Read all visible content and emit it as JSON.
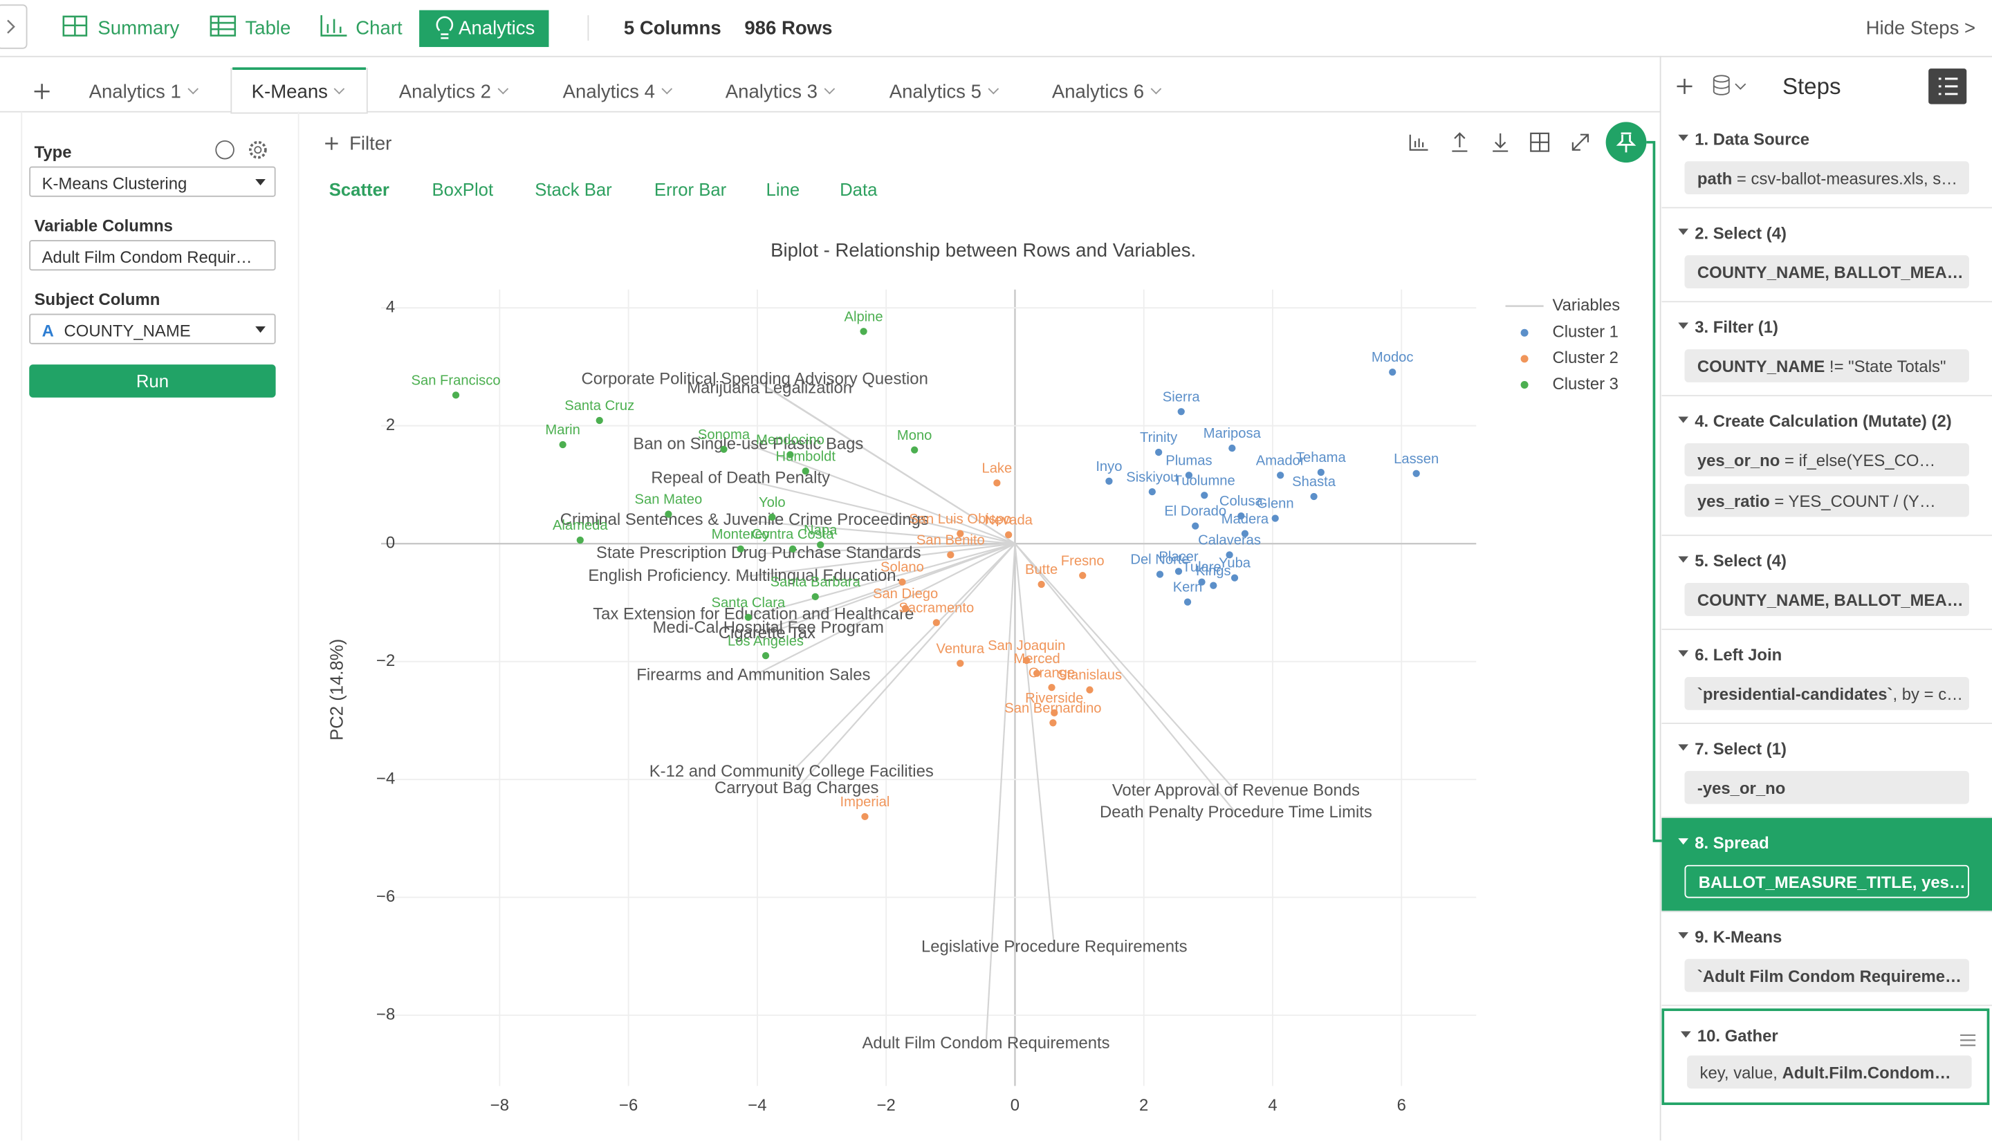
{
  "ui": {
    "top_tabs": [
      "Summary",
      "Table",
      "Chart",
      "Analytics"
    ],
    "columns": "5 Columns",
    "rows": "986 Rows",
    "hide_steps": "Hide Steps >",
    "analytics_tabs": [
      "Analytics 1",
      "K-Means",
      "Analytics 2",
      "Analytics 4",
      "Analytics 3",
      "Analytics 5",
      "Analytics 6"
    ],
    "panel": {
      "type_label": "Type",
      "type_value": "K-Means Clustering",
      "variable_label": "Variable Columns",
      "variable_value": "Adult Film Condom Requir…",
      "subject_label": "Subject Column",
      "subject_icon": "A",
      "subject_value": "COUNTY_NAME",
      "run": "Run"
    },
    "filter": "Filter",
    "chart_tabs": [
      "Scatter",
      "BoxPlot",
      "Stack Bar",
      "Error Bar",
      "Line",
      "Data"
    ],
    "steps_title": "Steps",
    "steps": [
      {
        "title": "1. Data Source",
        "chips": [
          {
            "bold": "path",
            "text": " = csv-ballot-measures.xls, s…"
          }
        ]
      },
      {
        "title": "2. Select (4)",
        "chips": [
          {
            "bold": "COUNTY_NAME, BALLOT_MEA…"
          }
        ]
      },
      {
        "title": "3. Filter (1)",
        "chips": [
          {
            "bold": "COUNTY_NAME",
            "text": " != \"State Totals\""
          }
        ]
      },
      {
        "title": "4. Create Calculation (Mutate) (2)",
        "chips": [
          {
            "bold": "yes_or_no",
            "text": " = if_else(YES_CO…"
          },
          {
            "bold": "yes_ratio",
            "text": " = YES_COUNT / (Y…"
          }
        ]
      },
      {
        "title": "5. Select (4)",
        "chips": [
          {
            "bold": "COUNTY_NAME, BALLOT_MEA…"
          }
        ]
      },
      {
        "title": "6. Left Join",
        "chips": [
          {
            "bold": "`presidential-candidates`",
            "text": ", by = c…"
          }
        ]
      },
      {
        "title": "7. Select (1)",
        "chips": [
          {
            "bold": "-yes_or_no"
          }
        ]
      },
      {
        "title": "8. Spread",
        "chips": [
          {
            "bold": "BALLOT_MEASURE_TITLE, yes…"
          }
        ]
      },
      {
        "title": "9. K-Means",
        "chips": [
          {
            "bold": "`Adult Film Condom Requireme…"
          }
        ]
      },
      {
        "title": "10. Gather",
        "chips": [
          {
            "text": "key, value, ",
            "bold": "Adult.Film.Condom…"
          }
        ]
      }
    ]
  },
  "chart_data": {
    "type": "scatter",
    "title": "Biplot - Relationship between Rows and Variables.",
    "ylabel": "PC2 (14.8%)",
    "xlim": [
      -9.84,
      7.16
    ],
    "ylim": [
      -9.2,
      4.31
    ],
    "xticks": [
      {
        "value": -8,
        "label": "−8"
      },
      {
        "value": -6,
        "label": "−6"
      },
      {
        "value": -4,
        "label": "−4"
      },
      {
        "value": -2,
        "label": "−2"
      },
      0,
      2,
      4,
      6
    ],
    "yticks": [
      {
        "value": -8,
        "label": "−8"
      },
      {
        "value": -6,
        "label": "−6"
      },
      {
        "value": -4,
        "label": "−4"
      },
      {
        "value": -2,
        "label": "−2"
      },
      0,
      2,
      4
    ],
    "grid": true,
    "vectors": {
      "name": "Variables",
      "color": "#d4d4d4",
      "labels": [
        "Corporate Political Spending Advisory Question",
        "Marijuana Legalization",
        "Ban on Single-use Plastic Bags",
        "Repeal of Death Penalty",
        "Criminal Sentences & Juvenile Crime Proceedings",
        "State Prescription Drug Purchase Standards",
        "English Proficiency. Multilingual Education.",
        "Tax Extension for Education and Healthcare",
        "Medi-Cal Hospital Fee Program",
        "Cigarette Tax",
        "Firearms and Ammunition Sales",
        "K-12 and Community College Facilities",
        "Carryout Bag Charges",
        "Voter Approval of Revenue Bonds",
        "Death Penalty Procedure Time Limits",
        "Legislative Procedure Requirements",
        "Adult Film Condom Requirements"
      ],
      "x": [
        -4.04,
        -3.81,
        -4.14,
        -4.26,
        -4.2,
        -3.98,
        -4.2,
        -4.06,
        -3.83,
        -3.85,
        -4.06,
        -3.47,
        -3.39,
        3.43,
        3.43,
        0.61,
        -0.45
      ],
      "y": [
        2.78,
        2.63,
        1.68,
        1.1,
        0.39,
        -0.17,
        -0.56,
        -1.21,
        -1.44,
        -1.53,
        -2.24,
        -3.88,
        -4.16,
        -4.2,
        -4.57,
        -6.85,
        -8.49
      ]
    },
    "series": [
      {
        "name": "Cluster 1",
        "color": "#5b8fc9",
        "labels": [
          "Modoc",
          "Sierra",
          "Mariposa",
          "Trinity",
          "Plumas",
          "Amador",
          "Tehama",
          "Lassen",
          "Inyo",
          "Siskiyou",
          "Tuolumne",
          "Shasta",
          "El Dorado",
          "Colusa",
          "Glenn",
          "Madera",
          "Calaveras",
          "Del Norte",
          "Placer",
          "Tulare",
          "Kings",
          "Yuba",
          "Kern"
        ],
        "x": [
          5.86,
          2.58,
          3.37,
          2.23,
          2.7,
          4.12,
          4.75,
          6.23,
          1.46,
          2.13,
          2.94,
          4.64,
          2.8,
          3.51,
          4.04,
          3.57,
          3.33,
          2.25,
          2.54,
          2.9,
          3.08,
          3.41,
          2.68
        ],
        "y": [
          2.91,
          2.24,
          1.62,
          1.55,
          1.16,
          1.16,
          1.21,
          1.19,
          1.06,
          0.88,
          0.82,
          0.8,
          0.3,
          0.47,
          0.43,
          0.17,
          -0.19,
          -0.52,
          -0.47,
          -0.65,
          -0.71,
          -0.58,
          -0.99
        ]
      },
      {
        "name": "Cluster 2",
        "color": "#f0955a",
        "labels": [
          "Lake",
          "Nevada",
          "San Luis Obispo",
          "San Benito",
          "Solano",
          "Butte",
          "Fresno",
          "San Diego",
          "Sacramento",
          "Ventura",
          "San Joaquin",
          "Merced",
          "Orange",
          "Stanislaus",
          "Riverside",
          "San Bernardino",
          "Imperial"
        ],
        "x": [
          -0.28,
          -0.1,
          -0.85,
          -1.0,
          -1.75,
          0.41,
          1.05,
          -1.7,
          -1.22,
          -0.85,
          0.18,
          0.34,
          0.57,
          1.16,
          0.61,
          0.59,
          -2.33
        ],
        "y": [
          1.03,
          0.15,
          0.17,
          -0.19,
          -0.65,
          -0.69,
          -0.54,
          -1.1,
          -1.34,
          -2.03,
          -1.98,
          -2.2,
          -2.44,
          -2.48,
          -2.87,
          -3.04,
          -4.63
        ]
      },
      {
        "name": "Cluster 3",
        "color": "#4caf50",
        "labels": [
          "Alpine",
          "San Francisco",
          "Santa Cruz",
          "Marin",
          "Mono",
          "Sonoma",
          "Mendocino",
          "Humboldt",
          "San Mateo",
          "Yolo",
          "Alameda",
          "Napa",
          "Monterey",
          "Contra Costa",
          "Santa Barbara",
          "Santa Clara",
          "Los Angeles"
        ],
        "x": [
          -2.35,
          -8.68,
          -6.45,
          -7.02,
          -1.56,
          -4.52,
          -3.49,
          -3.25,
          -5.38,
          -3.77,
          -6.75,
          -3.02,
          -4.26,
          -3.45,
          -3.1,
          -4.14,
          -3.87
        ],
        "y": [
          3.6,
          2.52,
          2.09,
          1.68,
          1.59,
          1.6,
          1.51,
          1.23,
          0.5,
          0.45,
          0.06,
          -0.02,
          -0.09,
          -0.09,
          -0.9,
          -1.25,
          -1.9
        ]
      }
    ]
  }
}
